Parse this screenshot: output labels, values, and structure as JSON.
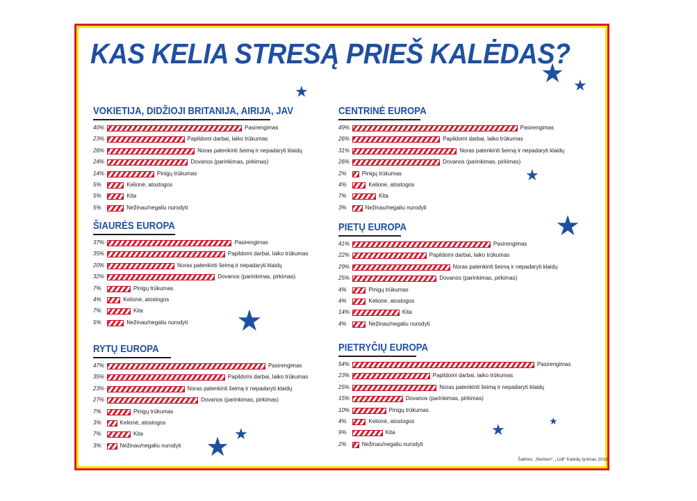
{
  "title": "KAS KELIA STRESĄ PRIEŠ KALĖDAS?",
  "source": "Šaltinis: „Nielsen“, „Lidl“ Kalėdų tyrimas 2016",
  "colors": {
    "title": "#1f4fa0",
    "bar": "#d3202f",
    "frame_outer": "#d11f2f",
    "frame_inner": "#ffe400"
  },
  "chart_data": [
    {
      "type": "bar",
      "title": "VOKIETIJA, DIDŽIOJI BRITANIJA, AIRIJA, JAV",
      "categories": [
        "Pasirengimas",
        "Papildomi darbai, laiko trūkumas",
        "Noras patenkinti šeimą ir nepadaryti klaidų",
        "Dovanos (parinkimas, pirkimas)",
        "Pinigų trūkumas",
        "Kelionė, atostogos",
        "Kita",
        "Nežinau/negaliu nurodyti"
      ],
      "values": [
        40,
        23,
        26,
        24,
        14,
        5,
        5,
        5
      ],
      "labels": [
        "40%",
        "23%",
        "26%",
        "24%",
        "14%",
        "5%",
        "5%",
        "5%"
      ]
    },
    {
      "type": "bar",
      "title": "CENTRINĖ EUROPA",
      "categories": [
        "Pasirengimas",
        "Papildomi darbai, laiko trūkumas",
        "Noras patenkinti šeimą ir nepadaryti klaidų",
        "Dovanos (parinkimas, pirkimas)",
        "Pinigų trūkumas",
        "Kelionė, atostogos",
        "Kita",
        "Nežinau/negaliu nurodyti"
      ],
      "values": [
        49,
        26,
        31,
        26,
        2,
        4,
        7,
        3
      ],
      "labels": [
        "49%",
        "26%",
        "31%",
        "26%",
        "2%",
        "4%",
        "7%",
        "3%"
      ]
    },
    {
      "type": "bar",
      "title": "ŠIAURĖS EUROPA",
      "categories": [
        "Pasirengimas",
        "Papildomi darbai, laiko trūkumas",
        "Noras patenkinti šeimą ir nepadaryti klaidų",
        "Dovanos (parinkimas, pirkimas)",
        "Pinigų trūkumas",
        "Kelionė, atostogos",
        "Kita",
        "Nežinau/negaliu nurodyti"
      ],
      "values": [
        37,
        35,
        20,
        32,
        7,
        4,
        7,
        5
      ],
      "labels": [
        "37%",
        "35%",
        "20%",
        "32%",
        "7%",
        "4%",
        "7%",
        "5%"
      ]
    },
    {
      "type": "bar",
      "title": "PIETŲ EUROPA",
      "categories": [
        "Pasirengimas",
        "Papildomi darbai, laiko trūkumas",
        "Noras patenkinti šeimą ir nepadaryti klaidų",
        "Dovanos (parinkimas, pirkimas)",
        "Pinigų trūkumas",
        "Kelionė, atostogos",
        "Kita",
        "Nežinau/negaliu nurodyti"
      ],
      "values": [
        41,
        22,
        29,
        25,
        4,
        4,
        14,
        4
      ],
      "labels": [
        "41%",
        "22%",
        "29%",
        "25%",
        "4%",
        "4%",
        "14%",
        "4%"
      ]
    },
    {
      "type": "bar",
      "title": "RYTŲ EUROPA",
      "categories": [
        "Pasirengimas",
        "Papildomi darbai, laiko trūkumas",
        "Noras patenkinti šeimą ir nepadaryti klaidų",
        "Dovanos (parinkimas, pirkimas)",
        "Pinigų trūkumas",
        "Kelionė, atostogos",
        "Kita",
        "Nežinau/negaliu nurodyti"
      ],
      "values": [
        47,
        35,
        23,
        27,
        7,
        3,
        7,
        3
      ],
      "labels": [
        "47%",
        "35%",
        "23%",
        "27%",
        "7%",
        "3%",
        "7%",
        "3%"
      ]
    },
    {
      "type": "bar",
      "title": "PIETRYČIŲ EUROPA",
      "categories": [
        "Pasirengimas",
        "Papildomi darbai, laiko trūkumas",
        "Noras patenkinti šeimą ir nepadaryti klaidų",
        "Dovanos (parinkimas, pirkimas)",
        "Pinigų trūkumas",
        "Kelionė, atostogos",
        "Kita",
        "Nežinau/negaliu nurodyti"
      ],
      "values": [
        54,
        23,
        25,
        15,
        10,
        4,
        9,
        2
      ],
      "labels": [
        "54%",
        "23%",
        "25%",
        "15%",
        "10%",
        "4%",
        "9%",
        "2%"
      ]
    }
  ]
}
